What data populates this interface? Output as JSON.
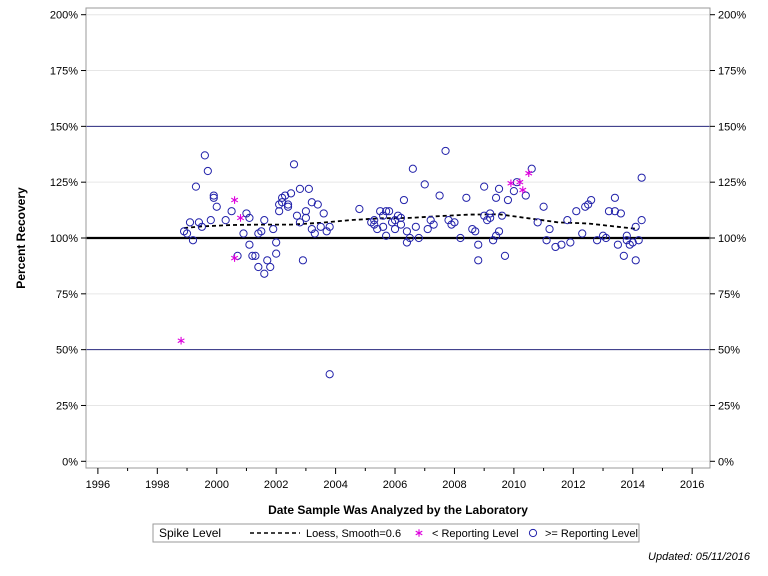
{
  "chart_data": {
    "type": "scatter",
    "xlabel": "Date Sample Was Analyzed by the Laboratory",
    "ylabel": "Percent Recovery",
    "xlim": [
      1995.6,
      2016.6
    ],
    "ylim": [
      -3,
      203
    ],
    "x_ticks": [
      1996,
      1998,
      2000,
      2002,
      2004,
      2006,
      2008,
      2010,
      2012,
      2014,
      2016
    ],
    "y_ticks": [
      0,
      25,
      50,
      75,
      100,
      125,
      150,
      175,
      200
    ],
    "y_tick_labels": [
      "0%",
      "25%",
      "50%",
      "75%",
      "100%",
      "125%",
      "150%",
      "175%",
      "200%"
    ],
    "reference_lines": [
      {
        "y": 50,
        "style": "thin",
        "color": "#2b2b80"
      },
      {
        "y": 100,
        "style": "thick",
        "color": "#000000"
      },
      {
        "y": 150,
        "style": "thin",
        "color": "#2b2b80"
      }
    ],
    "gridlines": true,
    "legend": {
      "placement": "bottom",
      "title": "Spike Level",
      "entries": [
        "Loess, Smooth=0.6",
        "< Reporting Level",
        ">= Reporting Level"
      ]
    },
    "series": [
      {
        "name": "Loess, Smooth=0.6",
        "kind": "line",
        "style": "dashed",
        "color": "#000000",
        "points": [
          [
            1998.9,
            104.5
          ],
          [
            1999.5,
            105.2
          ],
          [
            2000.5,
            105.8
          ],
          [
            2001.5,
            106.0
          ],
          [
            2002.5,
            106.0
          ],
          [
            2003.5,
            106.8
          ],
          [
            2004.5,
            108.0
          ],
          [
            2005.5,
            108.8
          ],
          [
            2006.5,
            109.0
          ],
          [
            2007.5,
            109.8
          ],
          [
            2008.5,
            110.5
          ],
          [
            2009.5,
            110.6
          ],
          [
            2010.5,
            108.8
          ],
          [
            2011.5,
            107.0
          ],
          [
            2012.5,
            106.5
          ],
          [
            2013.5,
            105.0
          ],
          [
            2014.2,
            104.0
          ]
        ]
      },
      {
        "name": "< Reporting Level",
        "kind": "marker",
        "marker": "asterisk",
        "color": "#dd00dd",
        "points": [
          [
            1998.8,
            54
          ],
          [
            2000.6,
            117
          ],
          [
            2000.6,
            91
          ],
          [
            2000.8,
            109
          ],
          [
            2009.9,
            124.5
          ],
          [
            2010.2,
            125
          ],
          [
            2010.3,
            121.5
          ],
          [
            2010.5,
            129
          ]
        ]
      },
      {
        "name": ">= Reporting Level",
        "kind": "marker",
        "marker": "circle",
        "color": "#2222aa",
        "points": [
          [
            1998.9,
            103
          ],
          [
            1999.0,
            102
          ],
          [
            1999.1,
            107
          ],
          [
            1999.2,
            99
          ],
          [
            1999.3,
            123
          ],
          [
            1999.4,
            107
          ],
          [
            1999.5,
            105
          ],
          [
            1999.6,
            137
          ],
          [
            1999.7,
            130
          ],
          [
            1999.8,
            108
          ],
          [
            1999.9,
            119
          ],
          [
            1999.9,
            118
          ],
          [
            2000.0,
            114
          ],
          [
            2000.3,
            108
          ],
          [
            2000.5,
            112
          ],
          [
            2000.7,
            92
          ],
          [
            2000.9,
            102
          ],
          [
            2001.0,
            111
          ],
          [
            2001.1,
            109
          ],
          [
            2001.1,
            97
          ],
          [
            2001.2,
            92
          ],
          [
            2001.3,
            92
          ],
          [
            2001.4,
            87
          ],
          [
            2001.4,
            102
          ],
          [
            2001.5,
            103
          ],
          [
            2001.6,
            84
          ],
          [
            2001.6,
            108
          ],
          [
            2001.7,
            90
          ],
          [
            2001.8,
            87
          ],
          [
            2001.9,
            104
          ],
          [
            2002.0,
            98
          ],
          [
            2002.0,
            93
          ],
          [
            2002.1,
            112
          ],
          [
            2002.1,
            115
          ],
          [
            2002.2,
            118
          ],
          [
            2002.2,
            116
          ],
          [
            2002.3,
            119
          ],
          [
            2002.4,
            115
          ],
          [
            2002.4,
            114
          ],
          [
            2002.5,
            120
          ],
          [
            2002.6,
            133
          ],
          [
            2002.7,
            110
          ],
          [
            2002.8,
            107
          ],
          [
            2002.8,
            122
          ],
          [
            2002.9,
            90
          ],
          [
            2003.0,
            112
          ],
          [
            2003.0,
            109
          ],
          [
            2003.1,
            122
          ],
          [
            2003.2,
            104
          ],
          [
            2003.2,
            116
          ],
          [
            2003.3,
            102
          ],
          [
            2003.4,
            115
          ],
          [
            2003.5,
            105
          ],
          [
            2003.6,
            111
          ],
          [
            2003.7,
            103
          ],
          [
            2003.8,
            105
          ],
          [
            2003.8,
            39
          ],
          [
            2004.8,
            113
          ],
          [
            2005.2,
            107
          ],
          [
            2005.3,
            106
          ],
          [
            2005.3,
            108
          ],
          [
            2005.4,
            104
          ],
          [
            2005.5,
            112
          ],
          [
            2005.6,
            110
          ],
          [
            2005.6,
            105
          ],
          [
            2005.7,
            101
          ],
          [
            2005.7,
            112
          ],
          [
            2005.8,
            112
          ],
          [
            2005.9,
            107
          ],
          [
            2006.0,
            108
          ],
          [
            2006.0,
            104
          ],
          [
            2006.1,
            110
          ],
          [
            2006.2,
            109
          ],
          [
            2006.2,
            106
          ],
          [
            2006.3,
            117
          ],
          [
            2006.4,
            103
          ],
          [
            2006.4,
            98
          ],
          [
            2006.5,
            100
          ],
          [
            2006.6,
            131
          ],
          [
            2006.7,
            105
          ],
          [
            2006.8,
            100
          ],
          [
            2007.0,
            124
          ],
          [
            2007.1,
            104
          ],
          [
            2007.2,
            108
          ],
          [
            2007.3,
            106
          ],
          [
            2007.5,
            119
          ],
          [
            2007.7,
            139
          ],
          [
            2007.8,
            108
          ],
          [
            2007.9,
            106
          ],
          [
            2008.0,
            107
          ],
          [
            2008.2,
            100
          ],
          [
            2008.4,
            118
          ],
          [
            2008.6,
            104
          ],
          [
            2008.7,
            103
          ],
          [
            2008.8,
            90
          ],
          [
            2008.8,
            97
          ],
          [
            2009.0,
            110
          ],
          [
            2009.0,
            123
          ],
          [
            2009.1,
            108
          ],
          [
            2009.2,
            111
          ],
          [
            2009.2,
            109
          ],
          [
            2009.3,
            99
          ],
          [
            2009.4,
            118
          ],
          [
            2009.4,
            101
          ],
          [
            2009.5,
            103
          ],
          [
            2009.5,
            122
          ],
          [
            2009.6,
            110
          ],
          [
            2009.7,
            92
          ],
          [
            2009.8,
            117
          ],
          [
            2010.0,
            121
          ],
          [
            2010.1,
            125
          ],
          [
            2010.4,
            119
          ],
          [
            2010.6,
            131
          ],
          [
            2010.8,
            107
          ],
          [
            2011.0,
            114
          ],
          [
            2011.1,
            99
          ],
          [
            2011.2,
            104
          ],
          [
            2011.4,
            96
          ],
          [
            2011.6,
            97
          ],
          [
            2011.8,
            108
          ],
          [
            2011.9,
            98
          ],
          [
            2012.1,
            112
          ],
          [
            2012.3,
            102
          ],
          [
            2012.4,
            114
          ],
          [
            2012.5,
            115
          ],
          [
            2012.6,
            117
          ],
          [
            2012.8,
            99
          ],
          [
            2013.0,
            101
          ],
          [
            2013.1,
            100
          ],
          [
            2013.2,
            112
          ],
          [
            2013.4,
            112
          ],
          [
            2013.4,
            118
          ],
          [
            2013.5,
            97
          ],
          [
            2013.6,
            111
          ],
          [
            2013.7,
            92
          ],
          [
            2013.8,
            101
          ],
          [
            2013.8,
            99
          ],
          [
            2013.9,
            97
          ],
          [
            2014.0,
            98
          ],
          [
            2014.1,
            105
          ],
          [
            2014.1,
            90
          ],
          [
            2014.2,
            99
          ],
          [
            2014.3,
            108
          ],
          [
            2014.3,
            127
          ]
        ]
      }
    ]
  },
  "footer": {
    "updated_text": "Updated: 05/11/2016"
  }
}
